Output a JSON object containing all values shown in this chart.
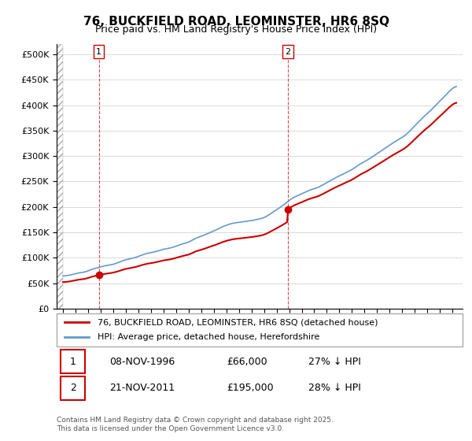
{
  "title": "76, BUCKFIELD ROAD, LEOMINSTER, HR6 8SQ",
  "subtitle": "Price paid vs. HM Land Registry's House Price Index (HPI)",
  "ylabel_ticks": [
    "£0",
    "£50K",
    "£100K",
    "£150K",
    "£200K",
    "£250K",
    "£300K",
    "£350K",
    "£400K",
    "£450K",
    "£500K"
  ],
  "ytick_values": [
    0,
    50000,
    100000,
    150000,
    200000,
    250000,
    300000,
    350000,
    400000,
    450000,
    500000
  ],
  "xlim": [
    1994,
    2025.5
  ],
  "ylim": [
    0,
    520000
  ],
  "sale1_year": 1996.85,
  "sale1_price": 66000,
  "sale2_year": 2011.89,
  "sale2_price": 195000,
  "legend_red": "76, BUCKFIELD ROAD, LEOMINSTER, HR6 8SQ (detached house)",
  "legend_blue": "HPI: Average price, detached house, Herefordshire",
  "table_rows": [
    {
      "num": "1",
      "date": "08-NOV-1996",
      "price": "£66,000",
      "hpi": "27% ↓ HPI"
    },
    {
      "num": "2",
      "date": "21-NOV-2011",
      "price": "£195,000",
      "hpi": "28% ↓ HPI"
    }
  ],
  "footnote": "Contains HM Land Registry data © Crown copyright and database right 2025.\nThis data is licensed under the Open Government Licence v3.0.",
  "red_color": "#cc0000",
  "blue_color": "#6699cc",
  "background_color": "#ffffff",
  "plot_bg_color": "#ffffff"
}
